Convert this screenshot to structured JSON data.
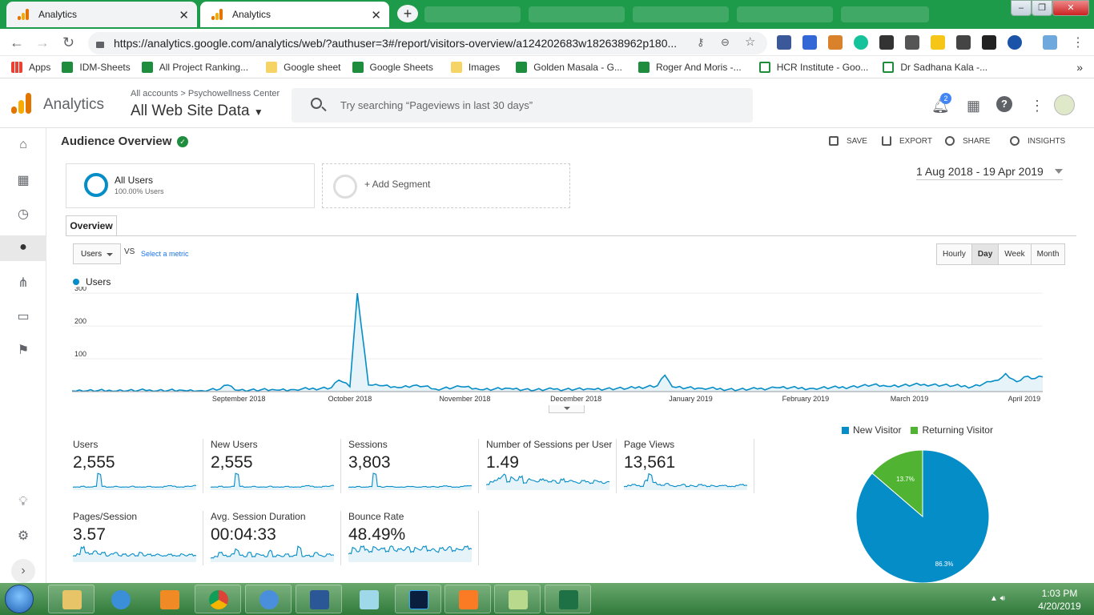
{
  "browser": {
    "tabs": [
      {
        "title": "Analytics"
      },
      {
        "title": "Analytics"
      }
    ],
    "new_tab": "+",
    "url": "https://analytics.google.com/analytics/web/?authuser=3#/report/visitors-overview/a124202683w182638962p180...",
    "window_controls": {
      "minimize": "–",
      "restore": "❐",
      "close": "✕"
    },
    "bookmarks": [
      {
        "label": "Apps",
        "icon": "apps-grid-icon"
      },
      {
        "label": "IDM-Sheets",
        "icon": "green-plus-icon"
      },
      {
        "label": "All Project Ranking...",
        "icon": "green-plus-icon"
      },
      {
        "label": "Google sheet",
        "icon": "folder-icon"
      },
      {
        "label": "Google Sheets",
        "icon": "green-plus-icon"
      },
      {
        "label": "Images",
        "icon": "folder-icon"
      },
      {
        "label": "Golden Masala - G...",
        "icon": "green-plus-icon"
      },
      {
        "label": "Roger And Moris -...",
        "icon": "green-plus-icon"
      },
      {
        "label": "HCR Institute - Goo...",
        "icon": "sheets-icon"
      },
      {
        "label": "Dr Sadhana Kala -...",
        "icon": "sheets-icon"
      }
    ],
    "more_bookmarks": "»"
  },
  "header": {
    "app_name": "Analytics",
    "crumbs": "All accounts > Psychowellness Center",
    "view": "All Web Site Data",
    "search_placeholder": "Try searching “Pageviews in last 30 days”",
    "notifications": "2"
  },
  "page": {
    "title": "Audience Overview",
    "actions": {
      "save": "SAVE",
      "export": "EXPORT",
      "share": "SHARE",
      "insights": "INSIGHTS"
    },
    "segment_name": "All Users",
    "segment_pct": "100.00% Users",
    "add_segment": "+ Add Segment",
    "date_range": "1 Aug 2018 - 19 Apr 2019",
    "tab": "Overview",
    "metric_select": "Users",
    "vs": "VS",
    "select_metric": "Select a metric",
    "granularity": [
      "Hourly",
      "Day",
      "Week",
      "Month"
    ],
    "granularity_active": "Day"
  },
  "chart_data": [
    {
      "type": "line",
      "series": [
        {
          "name": "Users",
          "color": "#058dc7"
        }
      ],
      "y_ticks": [
        100,
        200,
        300
      ],
      "ylim": [
        0,
        310
      ],
      "x_month_labels": [
        "September 2018",
        "October 2018",
        "November 2018",
        "December 2018",
        "January 2019",
        "February 2019",
        "March 2019",
        "April 2019"
      ],
      "x_month_start_day": [
        31,
        61,
        92,
        122,
        153,
        184,
        212,
        243
      ],
      "x_days": 262,
      "points": [
        [
          0,
          2
        ],
        [
          20,
          3
        ],
        [
          30,
          4
        ],
        [
          35,
          3
        ],
        [
          40,
          8
        ],
        [
          42,
          20
        ],
        [
          45,
          4
        ],
        [
          55,
          5
        ],
        [
          60,
          6
        ],
        [
          70,
          12
        ],
        [
          72,
          35
        ],
        [
          75,
          15
        ],
        [
          77,
          300
        ],
        [
          80,
          20
        ],
        [
          83,
          18
        ],
        [
          88,
          12
        ],
        [
          93,
          20
        ],
        [
          98,
          8
        ],
        [
          105,
          15
        ],
        [
          110,
          6
        ],
        [
          118,
          10
        ],
        [
          125,
          5
        ],
        [
          130,
          7
        ],
        [
          140,
          8
        ],
        [
          150,
          10
        ],
        [
          158,
          18
        ],
        [
          160,
          50
        ],
        [
          162,
          15
        ],
        [
          170,
          10
        ],
        [
          180,
          6
        ],
        [
          185,
          8
        ],
        [
          190,
          12
        ],
        [
          200,
          10
        ],
        [
          210,
          14
        ],
        [
          216,
          20
        ],
        [
          220,
          16
        ],
        [
          230,
          22
        ],
        [
          238,
          18
        ],
        [
          243,
          15
        ],
        [
          248,
          30
        ],
        [
          250,
          35
        ],
        [
          252,
          55
        ],
        [
          255,
          30
        ],
        [
          257,
          45
        ],
        [
          260,
          40
        ],
        [
          262,
          45
        ]
      ]
    },
    {
      "type": "pie",
      "categories": [
        "New Visitor",
        "Returning Visitor"
      ],
      "values": [
        86.3,
        13.7
      ],
      "value_labels": [
        "86.3%",
        "13.7%"
      ],
      "colors": [
        "#058dc7",
        "#50b432"
      ]
    }
  ],
  "metrics": [
    {
      "label": "Users",
      "value": "2,555",
      "spark": [
        2,
        2,
        3,
        2,
        2,
        3,
        20,
        3,
        2,
        2,
        3,
        2,
        2,
        2,
        3,
        2,
        2,
        2,
        3,
        2,
        2,
        2,
        3,
        4,
        3,
        2,
        2,
        3,
        3,
        4
      ]
    },
    {
      "label": "New Users",
      "value": "2,555",
      "spark": [
        2,
        2,
        3,
        2,
        2,
        3,
        20,
        3,
        2,
        2,
        3,
        2,
        2,
        2,
        3,
        2,
        2,
        2,
        3,
        2,
        2,
        2,
        3,
        4,
        3,
        2,
        2,
        3,
        3,
        4
      ]
    },
    {
      "label": "Sessions",
      "value": "3,803",
      "spark": [
        2,
        2,
        3,
        2,
        2,
        3,
        22,
        3,
        2,
        3,
        3,
        2,
        2,
        2,
        3,
        3,
        2,
        2,
        3,
        2,
        3,
        2,
        3,
        4,
        3,
        2,
        2,
        3,
        4,
        4
      ]
    },
    {
      "label": "Number of Sessions per User",
      "value": "1.49",
      "spark": [
        3,
        5,
        6,
        8,
        10,
        5,
        8,
        6,
        9,
        4,
        7,
        6,
        5,
        7,
        6,
        5,
        6,
        4,
        7,
        5,
        6,
        5,
        4,
        6,
        5,
        4,
        6,
        5,
        4,
        5
      ]
    },
    {
      "label": "Page Views",
      "value": "13,561",
      "spark": [
        2,
        3,
        4,
        3,
        2,
        8,
        14,
        6,
        4,
        3,
        5,
        3,
        2,
        3,
        4,
        2,
        3,
        2,
        4,
        3,
        2,
        3,
        2,
        3,
        3,
        2,
        2,
        3,
        4,
        3
      ]
    },
    {
      "label": "Pages/Session",
      "value": "3.57",
      "spark": [
        3,
        4,
        8,
        5,
        4,
        6,
        4,
        5,
        3,
        4,
        5,
        3,
        4,
        3,
        4,
        3,
        5,
        3,
        4,
        3,
        4,
        3,
        3,
        4,
        3,
        3,
        4,
        3,
        4,
        3
      ]
    },
    {
      "label": "Avg. Session Duration",
      "value": "00:04:33",
      "spark": [
        2,
        3,
        6,
        4,
        3,
        5,
        8,
        4,
        3,
        6,
        3,
        5,
        4,
        3,
        7,
        3,
        4,
        3,
        5,
        3,
        4,
        10,
        3,
        4,
        3,
        6,
        4,
        3,
        5,
        4
      ]
    },
    {
      "label": "Bounce Rate",
      "value": "48.49%",
      "spark": [
        8,
        14,
        10,
        16,
        12,
        10,
        15,
        12,
        14,
        10,
        16,
        11,
        13,
        12,
        15,
        10,
        14,
        12,
        16,
        11,
        13,
        10,
        14,
        12,
        15,
        11,
        13,
        12,
        16,
        13
      ]
    }
  ],
  "taskbar": {
    "time": "1:03 PM",
    "date": "4/20/2019"
  }
}
